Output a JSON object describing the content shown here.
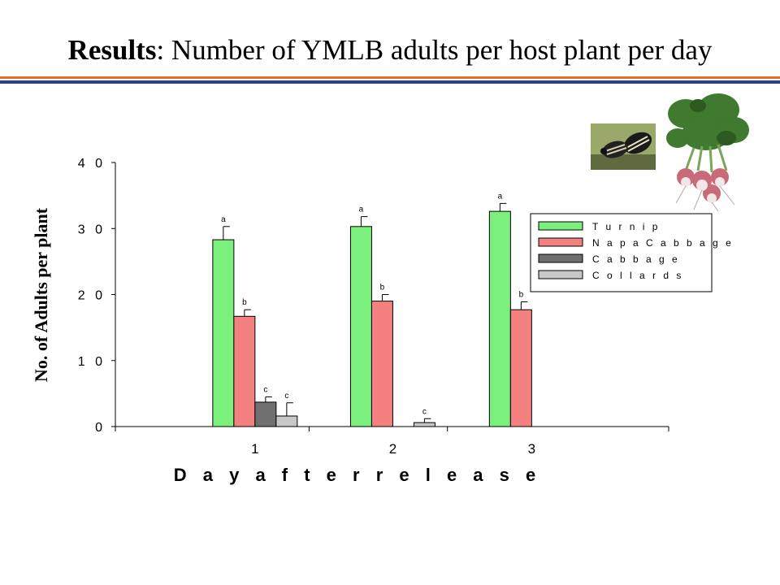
{
  "title": {
    "bold": "Results",
    "rest": ": Number of YMLB adults per host plant per day"
  },
  "colors": {
    "rule_orange": "#e8701a",
    "rule_blue": "#2a3f9c"
  },
  "images": {
    "beetle": "beetle-photo",
    "turnip": "turnip-photo"
  },
  "chart_data": {
    "type": "bar",
    "title": "",
    "xlabel": "D a y   a f t e r   r e l e a s e",
    "ylabel": "No. of Adults per plant",
    "categories": [
      "1",
      "2",
      "3"
    ],
    "y_tick_labels": [
      "0",
      "1 0",
      "2 0",
      "3 0",
      "4 0"
    ],
    "ylim": [
      0,
      40
    ],
    "grid": false,
    "legend_position": "top-right",
    "series": [
      {
        "name": "T u r n i p",
        "color": "#7cf07c",
        "values": [
          28.3,
          30.3,
          32.6
        ],
        "errors": [
          2.0,
          1.5,
          1.2
        ],
        "labels": [
          "a",
          "a",
          "a"
        ]
      },
      {
        "name": "N a p a   C a b b a g e",
        "color": "#f58080",
        "values": [
          16.7,
          19.0,
          17.7
        ],
        "errors": [
          1.0,
          1.0,
          1.2
        ],
        "labels": [
          "b",
          "b",
          "b"
        ]
      },
      {
        "name": "C a b b a g e",
        "color": "#707070",
        "values": [
          3.7,
          0,
          0
        ],
        "errors": [
          0.8,
          0,
          0
        ],
        "labels": [
          "c",
          "",
          ""
        ]
      },
      {
        "name": "C o l l a r d s",
        "color": "#c8c8c8",
        "values": [
          1.6,
          0.6,
          0
        ],
        "errors": [
          2.0,
          0.6,
          0
        ],
        "labels": [
          "c",
          "c",
          ""
        ]
      }
    ]
  }
}
